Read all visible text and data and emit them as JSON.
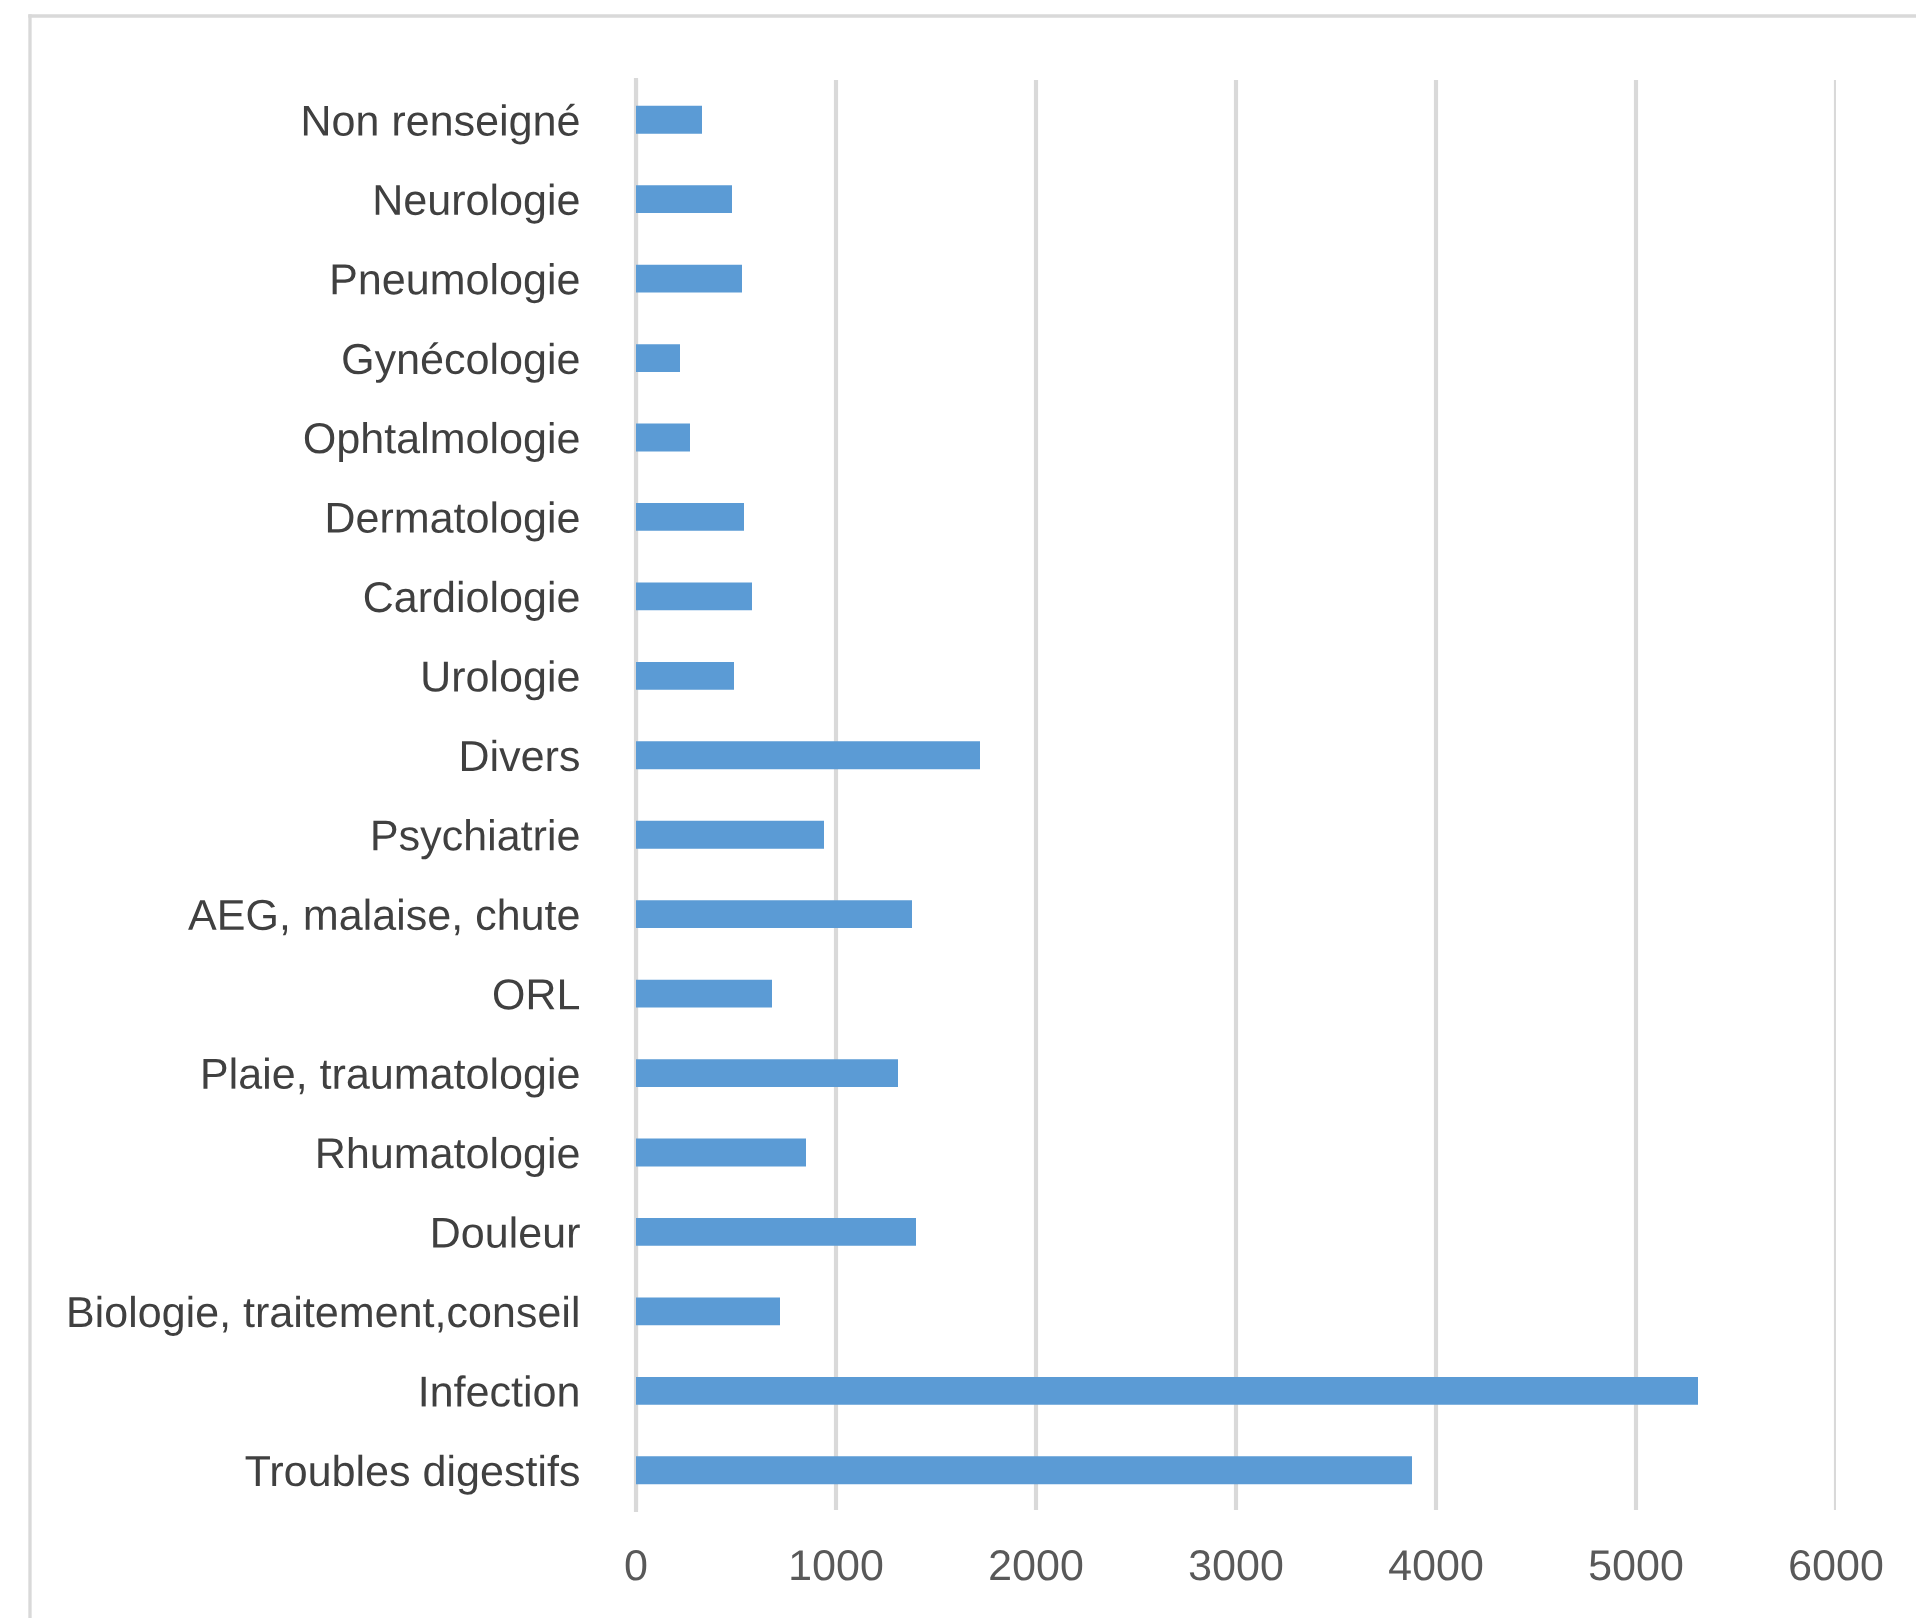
{
  "chart_data": {
    "type": "bar",
    "orientation": "horizontal",
    "categories": [
      "Non renseigné",
      "Neurologie",
      "Pneumologie",
      "Gynécologie",
      "Ophtalmologie",
      "Dermatologie",
      "Cardiologie",
      "Urologie",
      "Divers",
      "Psychiatrie",
      "AEG, malaise, chute",
      "ORL",
      "Plaie, traumatologie",
      "Rhumatologie",
      "Douleur",
      "Biologie, traitement,conseil",
      "Infection",
      "Troubles digestifs"
    ],
    "values": [
      330,
      480,
      530,
      220,
      270,
      540,
      580,
      490,
      1720,
      940,
      1380,
      680,
      1310,
      850,
      1400,
      720,
      5310,
      3880
    ],
    "color": "#5b9bd5",
    "xlim": [
      0,
      6000
    ],
    "xticks": [
      0,
      1000,
      2000,
      3000,
      4000,
      5000,
      6000
    ],
    "grid": "x"
  }
}
